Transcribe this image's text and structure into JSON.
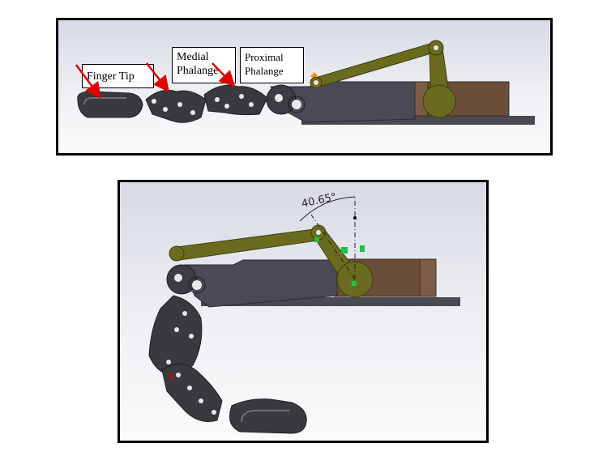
{
  "labels": {
    "finger_tip": "Finger Tip",
    "medial": "Medial Phalange",
    "proximal": "Proximal Phalange"
  },
  "angle_annotation": "40.65°",
  "colors": {
    "link": "#6b6b1f",
    "phalanx": "#3a3a3e",
    "base": "#52525a",
    "motor": "#6b4e3a",
    "arrow": "#e00000",
    "sensor": "#19c24a"
  }
}
